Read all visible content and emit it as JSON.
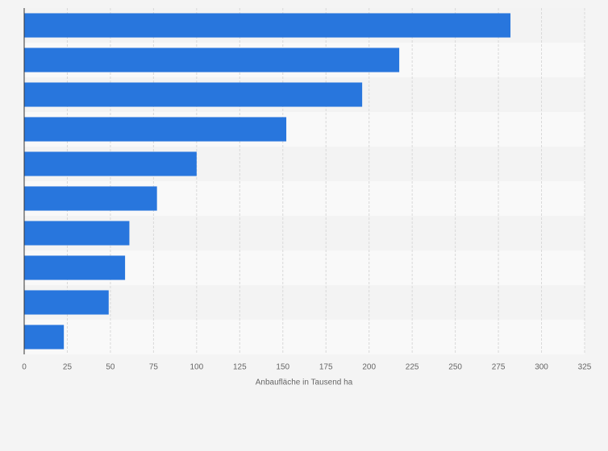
{
  "chart_data": {
    "type": "hbar",
    "categories": [
      null,
      null,
      null,
      null,
      null,
      null,
      null,
      null,
      null,
      null
    ],
    "values": [
      282,
      217.5,
      196,
      152,
      100,
      77,
      61,
      58.5,
      49,
      23
    ],
    "color": "#2876dd",
    "xlabel": "Anbaufläche in Tausend ha",
    "xlim": [
      0,
      325
    ],
    "xticks": [
      0,
      25,
      50,
      75,
      100,
      125,
      150,
      175,
      200,
      225,
      250,
      275,
      300,
      325
    ],
    "grid": true
  }
}
